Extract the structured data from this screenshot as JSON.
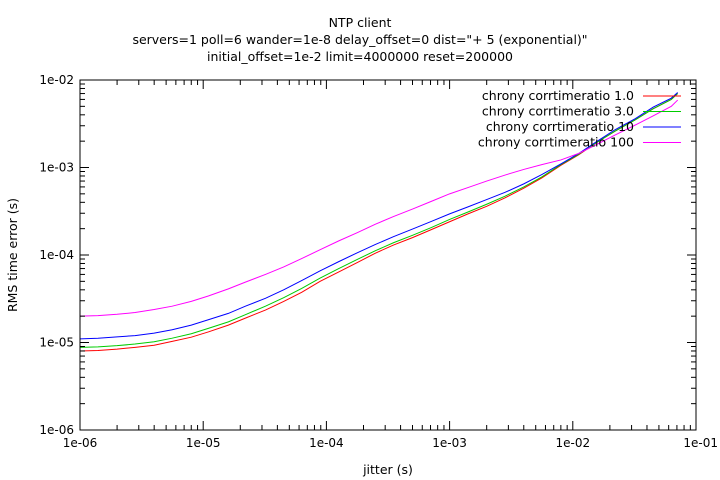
{
  "chart_data": {
    "type": "line",
    "title": "NTP client",
    "subtitle_lines": [
      "servers=1 poll=6 wander=1e-8 delay_offset=0 dist=\"+ 5 (exponential)\"",
      "initial_offset=1e-2 limit=4000000 reset=200000"
    ],
    "xlabel": "jitter (s)",
    "ylabel": "RMS time error (s)",
    "xscale": "log",
    "yscale": "log",
    "xlim": [
      1e-06,
      0.1
    ],
    "ylim": [
      1e-06,
      0.01
    ],
    "x_ticks": [
      1e-06,
      1e-05,
      0.0001,
      0.001,
      0.01,
      0.1
    ],
    "x_tick_labels": [
      "1e-06",
      "1e-05",
      "1e-04",
      "1e-03",
      "1e-02",
      "1e-01"
    ],
    "y_ticks": [
      1e-06,
      1e-05,
      0.0001,
      0.001,
      0.01
    ],
    "y_tick_labels": [
      "1e-06",
      "1e-05",
      "1e-04",
      "1e-03",
      "1e-02"
    ],
    "grid": false,
    "legend_position": "top-right",
    "x": [
      1e-06,
      1.4e-06,
      2e-06,
      2.8e-06,
      4e-06,
      5.6e-06,
      8e-06,
      1.1e-05,
      1.6e-05,
      2.2e-05,
      3.2e-05,
      4.5e-05,
      6.3e-05,
      8.9e-05,
      0.000126,
      0.000178,
      0.00025,
      0.00035,
      0.0005,
      0.00071,
      0.001,
      0.00141,
      0.002,
      0.00282,
      0.004,
      0.0056,
      0.008,
      0.0112,
      0.0158,
      0.022,
      0.032,
      0.045,
      0.063,
      0.071
    ],
    "series": [
      {
        "name": "chrony corrtimeratio 1.0",
        "color": "#ff0000",
        "values": [
          8e-06,
          8.1e-06,
          8.4e-06,
          8.8e-06,
          9.3e-06,
          1.03e-05,
          1.15e-05,
          1.32e-05,
          1.58e-05,
          1.9e-05,
          2.35e-05,
          2.95e-05,
          3.75e-05,
          5e-05,
          6.4e-05,
          8.2e-05,
          0.000105,
          0.00013,
          0.000158,
          0.000195,
          0.00024,
          0.000295,
          0.00036,
          0.00045,
          0.00058,
          0.00076,
          0.00106,
          0.0014,
          0.00195,
          0.0026,
          0.0035,
          0.0047,
          0.006,
          0.007
        ]
      },
      {
        "name": "chrony corrtimeratio 3.0",
        "color": "#00cc00",
        "values": [
          8.8e-06,
          8.9e-06,
          9.2e-06,
          9.6e-06,
          1.02e-05,
          1.12e-05,
          1.26e-05,
          1.45e-05,
          1.72e-05,
          2.08e-05,
          2.6e-05,
          3.25e-05,
          4.15e-05,
          5.45e-05,
          7e-05,
          8.9e-05,
          0.000112,
          0.000138,
          0.000168,
          0.000206,
          0.000255,
          0.00031,
          0.00038,
          0.00047,
          0.0006,
          0.00078,
          0.00108,
          0.00142,
          0.00195,
          0.0026,
          0.0035,
          0.0047,
          0.006,
          0.007
        ]
      },
      {
        "name": "chrony corrtimeratio 10",
        "color": "#0000ff",
        "values": [
          1.1e-05,
          1.12e-05,
          1.16e-05,
          1.2e-05,
          1.28e-05,
          1.4e-05,
          1.58e-05,
          1.82e-05,
          2.15e-05,
          2.6e-05,
          3.2e-05,
          4e-05,
          5.1e-05,
          6.6e-05,
          8.4e-05,
          0.000106,
          0.000132,
          0.000162,
          0.000198,
          0.000242,
          0.000295,
          0.000355,
          0.00043,
          0.00052,
          0.00065,
          0.00083,
          0.0011,
          0.00145,
          0.002,
          0.0027,
          0.0036,
          0.0049,
          0.0062,
          0.0072
        ]
      },
      {
        "name": "chrony corrtimeratio 100",
        "color": "#ff00ff",
        "values": [
          2e-05,
          2.03e-05,
          2.1e-05,
          2.2e-05,
          2.38e-05,
          2.6e-05,
          2.95e-05,
          3.4e-05,
          4.1e-05,
          4.9e-05,
          6e-05,
          7.3e-05,
          9.1e-05,
          0.000115,
          0.000145,
          0.00018,
          0.000225,
          0.000275,
          0.000335,
          0.00041,
          0.0005,
          0.00059,
          0.0007,
          0.00082,
          0.00095,
          0.00108,
          0.00122,
          0.00145,
          0.00185,
          0.00235,
          0.00305,
          0.0039,
          0.005,
          0.0059
        ]
      }
    ]
  }
}
